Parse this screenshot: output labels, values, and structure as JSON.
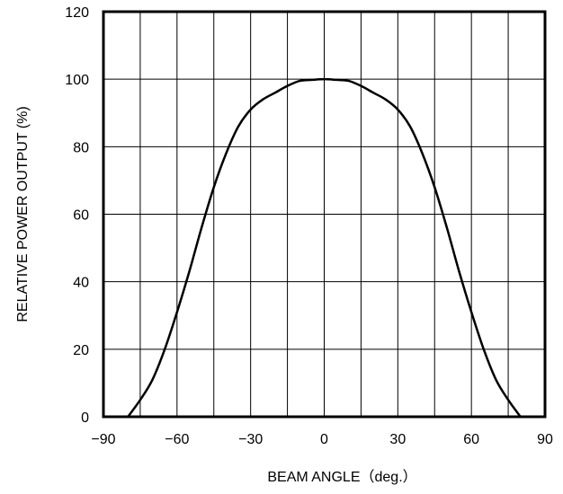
{
  "chart_data": {
    "type": "line",
    "title": "",
    "xlabel": "BEAM ANGLE（deg.）",
    "ylabel": "RELATIVE POWER OUTPUT (%)",
    "xlim": [
      -90,
      90
    ],
    "ylim": [
      0,
      120
    ],
    "x_ticks": [
      -90,
      -60,
      -30,
      0,
      30,
      60,
      90
    ],
    "x_tick_labels": [
      "−90",
      "−60",
      "−30",
      "0",
      "30",
      "60",
      "90"
    ],
    "y_ticks": [
      0,
      20,
      40,
      60,
      80,
      100,
      120
    ],
    "y_tick_labels": [
      "0",
      "20",
      "40",
      "60",
      "80",
      "100",
      "120"
    ],
    "grid": true,
    "x_grid_step": 15,
    "y_grid_step": 20,
    "series": [
      {
        "x": [
          -80,
          -75,
          -70,
          -65,
          -60,
          -55,
          -50,
          -45,
          -40,
          -35,
          -30,
          -25,
          -20,
          -15,
          -10,
          -5,
          0,
          5,
          10,
          15,
          20,
          25,
          30,
          35,
          40,
          45,
          50,
          55,
          60,
          65,
          70,
          75,
          80
        ],
        "y": [
          0,
          5,
          11,
          20,
          31,
          43,
          56,
          68,
          78,
          86,
          91,
          94,
          96,
          98,
          99.5,
          99.8,
          100,
          99.8,
          99.5,
          98,
          96,
          94,
          91,
          86,
          78,
          68,
          56,
          43,
          31,
          20,
          11,
          5,
          0
        ],
        "color": "#000000"
      }
    ]
  }
}
